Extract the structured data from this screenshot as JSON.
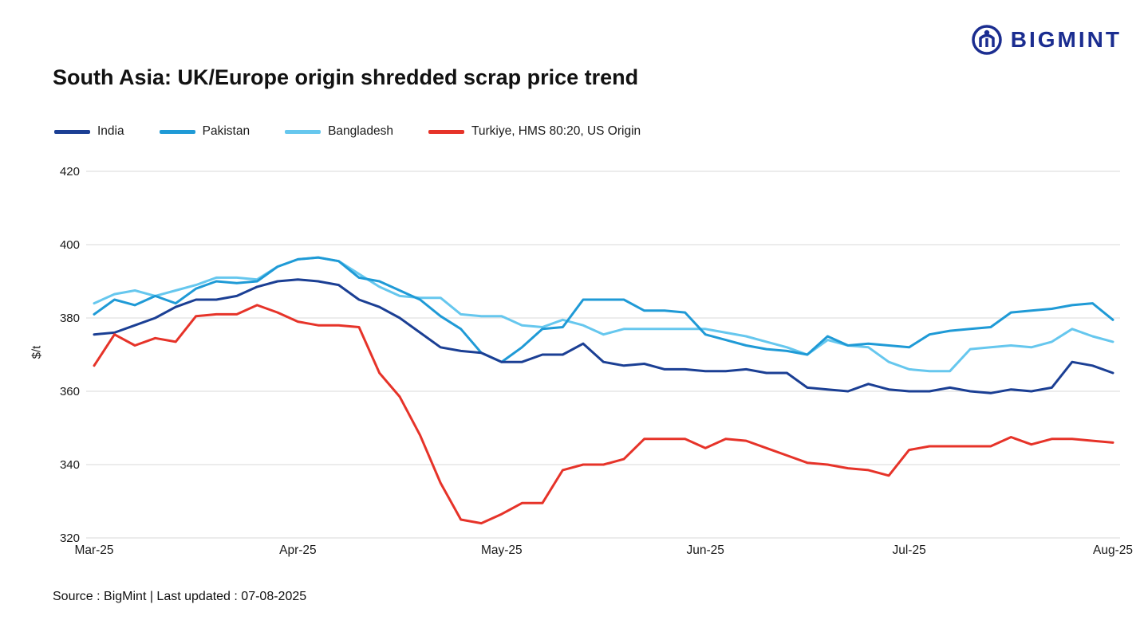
{
  "logo": {
    "text": "BIGMINT"
  },
  "title": "South Asia: UK/Europe origin shredded scrap price trend",
  "footer": {
    "source": "Source : BigMint | Last updated : 07-08-2025"
  },
  "chart_data": {
    "type": "line",
    "title": "South Asia: UK/Europe origin shredded scrap price trend",
    "xlabel": "",
    "ylabel": "$/t",
    "ylim": [
      320,
      420
    ],
    "yticks": [
      320,
      340,
      360,
      380,
      400,
      420
    ],
    "xticklabels": [
      "Mar-25",
      "Apr-25",
      "May-25",
      "Jun-25",
      "Jul-25",
      "Aug-25"
    ],
    "grid": true,
    "legend_position": "top",
    "series": [
      {
        "name": "India",
        "color": "#1b3f94",
        "values": [
          375.5,
          376,
          378,
          380,
          383,
          385,
          385,
          386,
          388.5,
          390,
          390.5,
          390,
          389,
          385,
          383,
          380,
          376,
          372,
          371,
          370.5,
          368,
          368,
          370,
          370,
          373,
          368,
          367,
          367.5,
          366,
          366,
          365.5,
          365.5,
          366,
          365,
          365,
          361,
          360.5,
          360,
          362,
          360.5,
          360,
          360,
          361,
          360,
          359.5,
          360.5,
          360,
          361,
          368,
          367,
          365
        ]
      },
      {
        "name": "Pakistan",
        "color": "#1f9ad6",
        "values": [
          381,
          385,
          383.5,
          386,
          384,
          388,
          390,
          389.5,
          390,
          394,
          396,
          396.5,
          395.5,
          391,
          390,
          387.5,
          385,
          380.5,
          377,
          370.5,
          368,
          372,
          377,
          377.5,
          385,
          385,
          385,
          382,
          382,
          381.5,
          375.5,
          374,
          372.5,
          371.5,
          371,
          370,
          375,
          372.5,
          373,
          372.5,
          372,
          375.5,
          376.5,
          377,
          377.5,
          381.5,
          382,
          382.5,
          383.5,
          384,
          379.5
        ]
      },
      {
        "name": "Bangladesh",
        "color": "#66c7ee",
        "values": [
          384,
          386.5,
          387.5,
          386,
          387.5,
          389,
          391,
          391,
          390.5,
          394,
          396,
          396.5,
          395.5,
          392,
          388.5,
          386,
          385.5,
          385.5,
          381,
          380.5,
          380.5,
          378,
          377.5,
          379.5,
          378,
          375.5,
          377,
          377,
          377,
          377,
          377,
          376,
          375,
          373.5,
          372,
          370,
          374,
          372.5,
          372,
          368,
          366,
          365.5,
          365.5,
          371.5,
          372,
          372.5,
          372,
          373.5,
          377,
          375,
          373.5
        ]
      },
      {
        "name": "Turkiye, HMS 80:20, US Origin",
        "color": "#e63329",
        "values": [
          367,
          375.5,
          372.5,
          374.5,
          373.5,
          380.5,
          381,
          381,
          383.5,
          381.5,
          379,
          378,
          378,
          377.5,
          365,
          358.5,
          348,
          335,
          325,
          324,
          326.5,
          329.5,
          329.5,
          338.5,
          340,
          340,
          341.5,
          347,
          347,
          347,
          344.5,
          347,
          346.5,
          344.5,
          342.5,
          340.5,
          340,
          339,
          338.5,
          337,
          344,
          345,
          345,
          345,
          345,
          347.5,
          345.5,
          347,
          347,
          346.5,
          346
        ]
      }
    ]
  }
}
